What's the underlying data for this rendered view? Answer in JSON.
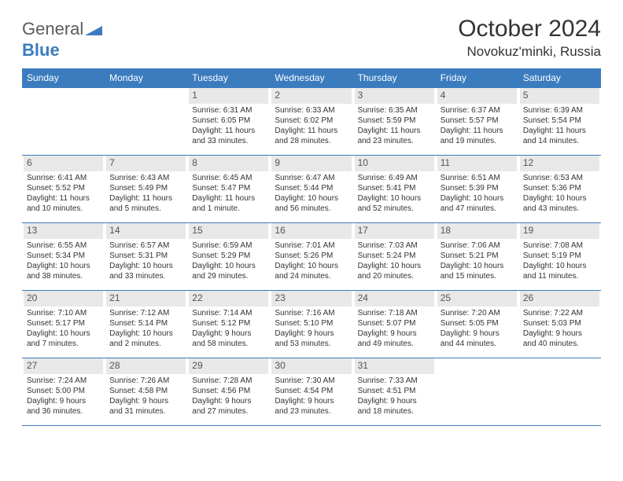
{
  "logo": {
    "gray": "General",
    "blue": "Blue"
  },
  "title": "October 2024",
  "location": "Novokuz'minki, Russia",
  "colors": {
    "header_bg": "#3b7cbf",
    "daynum_bg": "#e8e8e8",
    "border": "#3b7cbf"
  },
  "day_headers": [
    "Sunday",
    "Monday",
    "Tuesday",
    "Wednesday",
    "Thursday",
    "Friday",
    "Saturday"
  ],
  "weeks": [
    [
      null,
      null,
      {
        "n": "1",
        "sr": "Sunrise: 6:31 AM",
        "ss": "Sunset: 6:05 PM",
        "d1": "Daylight: 11 hours",
        "d2": "and 33 minutes."
      },
      {
        "n": "2",
        "sr": "Sunrise: 6:33 AM",
        "ss": "Sunset: 6:02 PM",
        "d1": "Daylight: 11 hours",
        "d2": "and 28 minutes."
      },
      {
        "n": "3",
        "sr": "Sunrise: 6:35 AM",
        "ss": "Sunset: 5:59 PM",
        "d1": "Daylight: 11 hours",
        "d2": "and 23 minutes."
      },
      {
        "n": "4",
        "sr": "Sunrise: 6:37 AM",
        "ss": "Sunset: 5:57 PM",
        "d1": "Daylight: 11 hours",
        "d2": "and 19 minutes."
      },
      {
        "n": "5",
        "sr": "Sunrise: 6:39 AM",
        "ss": "Sunset: 5:54 PM",
        "d1": "Daylight: 11 hours",
        "d2": "and 14 minutes."
      }
    ],
    [
      {
        "n": "6",
        "sr": "Sunrise: 6:41 AM",
        "ss": "Sunset: 5:52 PM",
        "d1": "Daylight: 11 hours",
        "d2": "and 10 minutes."
      },
      {
        "n": "7",
        "sr": "Sunrise: 6:43 AM",
        "ss": "Sunset: 5:49 PM",
        "d1": "Daylight: 11 hours",
        "d2": "and 5 minutes."
      },
      {
        "n": "8",
        "sr": "Sunrise: 6:45 AM",
        "ss": "Sunset: 5:47 PM",
        "d1": "Daylight: 11 hours",
        "d2": "and 1 minute."
      },
      {
        "n": "9",
        "sr": "Sunrise: 6:47 AM",
        "ss": "Sunset: 5:44 PM",
        "d1": "Daylight: 10 hours",
        "d2": "and 56 minutes."
      },
      {
        "n": "10",
        "sr": "Sunrise: 6:49 AM",
        "ss": "Sunset: 5:41 PM",
        "d1": "Daylight: 10 hours",
        "d2": "and 52 minutes."
      },
      {
        "n": "11",
        "sr": "Sunrise: 6:51 AM",
        "ss": "Sunset: 5:39 PM",
        "d1": "Daylight: 10 hours",
        "d2": "and 47 minutes."
      },
      {
        "n": "12",
        "sr": "Sunrise: 6:53 AM",
        "ss": "Sunset: 5:36 PM",
        "d1": "Daylight: 10 hours",
        "d2": "and 43 minutes."
      }
    ],
    [
      {
        "n": "13",
        "sr": "Sunrise: 6:55 AM",
        "ss": "Sunset: 5:34 PM",
        "d1": "Daylight: 10 hours",
        "d2": "and 38 minutes."
      },
      {
        "n": "14",
        "sr": "Sunrise: 6:57 AM",
        "ss": "Sunset: 5:31 PM",
        "d1": "Daylight: 10 hours",
        "d2": "and 33 minutes."
      },
      {
        "n": "15",
        "sr": "Sunrise: 6:59 AM",
        "ss": "Sunset: 5:29 PM",
        "d1": "Daylight: 10 hours",
        "d2": "and 29 minutes."
      },
      {
        "n": "16",
        "sr": "Sunrise: 7:01 AM",
        "ss": "Sunset: 5:26 PM",
        "d1": "Daylight: 10 hours",
        "d2": "and 24 minutes."
      },
      {
        "n": "17",
        "sr": "Sunrise: 7:03 AM",
        "ss": "Sunset: 5:24 PM",
        "d1": "Daylight: 10 hours",
        "d2": "and 20 minutes."
      },
      {
        "n": "18",
        "sr": "Sunrise: 7:06 AM",
        "ss": "Sunset: 5:21 PM",
        "d1": "Daylight: 10 hours",
        "d2": "and 15 minutes."
      },
      {
        "n": "19",
        "sr": "Sunrise: 7:08 AM",
        "ss": "Sunset: 5:19 PM",
        "d1": "Daylight: 10 hours",
        "d2": "and 11 minutes."
      }
    ],
    [
      {
        "n": "20",
        "sr": "Sunrise: 7:10 AM",
        "ss": "Sunset: 5:17 PM",
        "d1": "Daylight: 10 hours",
        "d2": "and 7 minutes."
      },
      {
        "n": "21",
        "sr": "Sunrise: 7:12 AM",
        "ss": "Sunset: 5:14 PM",
        "d1": "Daylight: 10 hours",
        "d2": "and 2 minutes."
      },
      {
        "n": "22",
        "sr": "Sunrise: 7:14 AM",
        "ss": "Sunset: 5:12 PM",
        "d1": "Daylight: 9 hours",
        "d2": "and 58 minutes."
      },
      {
        "n": "23",
        "sr": "Sunrise: 7:16 AM",
        "ss": "Sunset: 5:10 PM",
        "d1": "Daylight: 9 hours",
        "d2": "and 53 minutes."
      },
      {
        "n": "24",
        "sr": "Sunrise: 7:18 AM",
        "ss": "Sunset: 5:07 PM",
        "d1": "Daylight: 9 hours",
        "d2": "and 49 minutes."
      },
      {
        "n": "25",
        "sr": "Sunrise: 7:20 AM",
        "ss": "Sunset: 5:05 PM",
        "d1": "Daylight: 9 hours",
        "d2": "and 44 minutes."
      },
      {
        "n": "26",
        "sr": "Sunrise: 7:22 AM",
        "ss": "Sunset: 5:03 PM",
        "d1": "Daylight: 9 hours",
        "d2": "and 40 minutes."
      }
    ],
    [
      {
        "n": "27",
        "sr": "Sunrise: 7:24 AM",
        "ss": "Sunset: 5:00 PM",
        "d1": "Daylight: 9 hours",
        "d2": "and 36 minutes."
      },
      {
        "n": "28",
        "sr": "Sunrise: 7:26 AM",
        "ss": "Sunset: 4:58 PM",
        "d1": "Daylight: 9 hours",
        "d2": "and 31 minutes."
      },
      {
        "n": "29",
        "sr": "Sunrise: 7:28 AM",
        "ss": "Sunset: 4:56 PM",
        "d1": "Daylight: 9 hours",
        "d2": "and 27 minutes."
      },
      {
        "n": "30",
        "sr": "Sunrise: 7:30 AM",
        "ss": "Sunset: 4:54 PM",
        "d1": "Daylight: 9 hours",
        "d2": "and 23 minutes."
      },
      {
        "n": "31",
        "sr": "Sunrise: 7:33 AM",
        "ss": "Sunset: 4:51 PM",
        "d1": "Daylight: 9 hours",
        "d2": "and 18 minutes."
      },
      null,
      null
    ]
  ]
}
